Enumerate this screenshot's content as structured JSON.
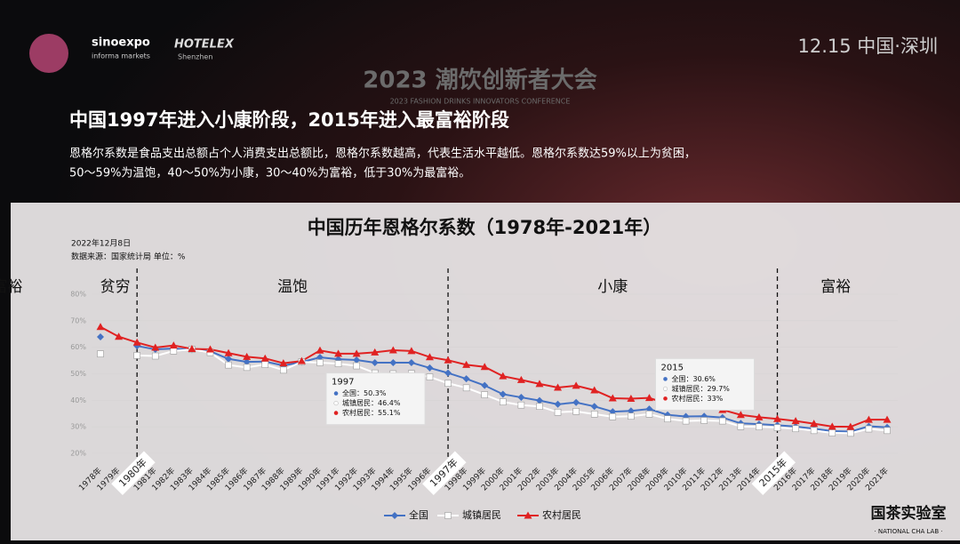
{
  "header": {
    "date_place": "12.15  中国·深圳",
    "conference": "2023 潮饮创新者大会",
    "conference_en": "2023 FASHION DRINKS INNOVATORS CONFERENCE",
    "logo1": "sinoexpo",
    "logo1_sub": "informa markets",
    "logo2": "HOTELEX",
    "logo2_sub": "Shenzhen"
  },
  "headline": "中国1997年进入小康阶段，2015年进入最富裕阶段",
  "description": [
    "恩格尔系数是食品支出总额占个人消费支出总额比，恩格尔系数越高，代表生活水平越低。恩格尔系数达59%以上为贫困，",
    "50～59%为温饱，40～50%为小康，30～40%为富裕，低于30%为最富裕。"
  ],
  "footer": {
    "brand": "国茶实验室",
    "brand_en": "· NATIONAL CHA LAB ·"
  },
  "chart_data": {
    "type": "line",
    "title": "中国历年恩格尔系数（1978年-2021年）",
    "subtitle": "2022年12月8日",
    "source": "数据来源：国家统计局  单位：%",
    "categories": [
      "1978年",
      "1979年",
      "1980年",
      "1981年",
      "1982年",
      "1983年",
      "1984年",
      "1985年",
      "1986年",
      "1987年",
      "1988年",
      "1989年",
      "1990年",
      "1991年",
      "1992年",
      "1993年",
      "1994年",
      "1995年",
      "1996年",
      "1997年",
      "1998年",
      "1999年",
      "2000年",
      "2001年",
      "2002年",
      "2003年",
      "2004年",
      "2005年",
      "2006年",
      "2007年",
      "2008年",
      "2009年",
      "2010年",
      "2011年",
      "2012年",
      "2013年",
      "2014年",
      "2015年",
      "2016年",
      "2017年",
      "2018年",
      "2019年",
      "2020年",
      "2021年"
    ],
    "series": [
      {
        "name": "全国",
        "color": "#4472c4",
        "marker": "diamond",
        "values": [
          63.9,
          null,
          60.5,
          59.2,
          59.5,
          59.1,
          58.5,
          55.6,
          54.5,
          54.6,
          53.1,
          54.4,
          56.2,
          55.5,
          55.2,
          54.2,
          54.2,
          54.2,
          52.2,
          50.3,
          48.1,
          45.6,
          42.3,
          41.1,
          39.9,
          38.5,
          39.2,
          37.7,
          35.7,
          36.0,
          36.7,
          34.5,
          33.9,
          34.0,
          33.5,
          31.3,
          31.0,
          30.6,
          30.1,
          29.3,
          28.4,
          28.2,
          30.2,
          29.8
        ]
      },
      {
        "name": "城镇居民",
        "color": "#ffffff",
        "marker": "square",
        "values": [
          57.5,
          null,
          56.9,
          56.7,
          58.6,
          59.2,
          58.0,
          53.3,
          52.4,
          53.5,
          51.4,
          54.5,
          54.2,
          53.8,
          53.0,
          50.3,
          50.0,
          50.1,
          48.8,
          46.4,
          44.7,
          42.1,
          39.4,
          38.2,
          37.7,
          35.5,
          35.8,
          34.8,
          33.8,
          34.0,
          34.8,
          33.0,
          32.2,
          32.4,
          32.2,
          30.1,
          30.0,
          29.7,
          29.3,
          28.6,
          27.7,
          27.6,
          29.2,
          28.6
        ]
      },
      {
        "name": "农村居民",
        "color": "#e02222",
        "marker": "triangle",
        "values": [
          67.7,
          64.0,
          61.8,
          59.9,
          60.7,
          59.4,
          59.2,
          57.8,
          56.4,
          55.8,
          54.0,
          54.8,
          58.8,
          57.6,
          57.6,
          58.1,
          58.9,
          58.6,
          56.3,
          55.1,
          53.4,
          52.6,
          49.1,
          47.7,
          46.2,
          44.8,
          45.5,
          43.8,
          40.8,
          40.6,
          40.9,
          38.6,
          38.2,
          37.5,
          36.4,
          34.5,
          33.6,
          33.0,
          32.2,
          31.2,
          30.1,
          30.0,
          32.7,
          32.7
        ]
      }
    ],
    "ylim": [
      20,
      80
    ],
    "yticks": [
      {
        "value": 20,
        "label": "20%"
      },
      {
        "value": 30,
        "label": "30%"
      },
      {
        "value": 40,
        "label": "40%"
      },
      {
        "value": 50,
        "label": "50%"
      },
      {
        "value": 60,
        "label": "60%"
      },
      {
        "value": 70,
        "label": "70%"
      },
      {
        "value": 80,
        "label": "80%"
      }
    ],
    "grid": true,
    "stages": [
      "贫穷",
      "温饱",
      "小康",
      "富裕",
      "最富裕"
    ],
    "dividers": [
      "1980年",
      "1997年",
      "2015年"
    ],
    "callouts": [
      {
        "year": "1997",
        "lines": [
          "全国：50.3%",
          "城镇居民：46.4%",
          "农村居民：55.1%"
        ]
      },
      {
        "year": "2015",
        "lines": [
          "全国：30.6%",
          "城镇居民：29.7%",
          "农村居民：33%"
        ]
      }
    ],
    "legend": "bottom"
  }
}
